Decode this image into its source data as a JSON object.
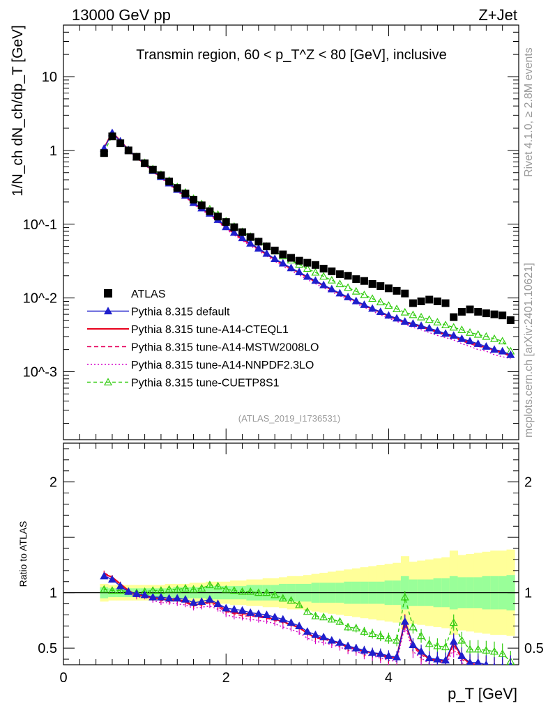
{
  "header": {
    "energy_label": "13000 GeV pp",
    "process_label": "Z+Jet"
  },
  "side": {
    "rivet_label": "Rivet 4.1.0, ≥ 2.8M events",
    "mcplots_label": "mcplots.cern.ch [arXiv:2401.10621]"
  },
  "colors": {
    "atlas": "#000000",
    "default": "#1f1fcc",
    "cteql1": "#e8001c",
    "mstw": "#e6005c",
    "nnpdf": "#d400c8",
    "cuetp8s1": "#33cc11",
    "band_inner": "#99ff99",
    "band_outer": "#ffff99"
  },
  "chart_data": {
    "type": "scatter",
    "main": {
      "title": "Transmin region, 60 < p_T^Z < 80 [GeV], inclusive",
      "ylabel": "1/N_ch dN_ch/dp_T [GeV]",
      "yscale": "log",
      "ylim": [
        0.00012,
        50
      ],
      "yticks": [
        "10",
        "1",
        "10^-1",
        "10^-2",
        "10^-3"
      ],
      "analysis_tag": "(ATLAS_2019_I1736531)"
    },
    "ratio": {
      "ylabel": "Ratio to ATLAS",
      "ylim": [
        0.35,
        2.35
      ],
      "yticks": [
        "2",
        "1",
        "0.5"
      ]
    },
    "xlabel": "p_T [GeV]",
    "xlim": [
      0,
      5.6
    ],
    "xticks": [
      "0",
      "2",
      "4"
    ],
    "x": [
      0.5,
      0.6,
      0.7,
      0.8,
      0.9,
      1.0,
      1.1,
      1.2,
      1.3,
      1.4,
      1.5,
      1.6,
      1.7,
      1.8,
      1.9,
      2.0,
      2.1,
      2.2,
      2.3,
      2.4,
      2.5,
      2.6,
      2.7,
      2.8,
      2.9,
      3.0,
      3.1,
      3.2,
      3.3,
      3.4,
      3.5,
      3.6,
      3.7,
      3.8,
      3.9,
      4.0,
      4.1,
      4.2,
      4.3,
      4.4,
      4.5,
      4.6,
      4.7,
      4.8,
      4.9,
      5.0,
      5.1,
      5.2,
      5.3,
      5.4,
      5.5
    ],
    "series": [
      {
        "name": "ATLAS",
        "key": "atlas",
        "style": "square",
        "values": [
          0.92,
          1.55,
          1.25,
          1.0,
          0.82,
          0.67,
          0.55,
          0.46,
          0.38,
          0.31,
          0.26,
          0.215,
          0.18,
          0.15,
          0.127,
          0.107,
          0.091,
          0.078,
          0.067,
          0.058,
          0.05,
          0.044,
          0.039,
          0.035,
          0.032,
          0.03,
          0.028,
          0.025,
          0.023,
          0.021,
          0.02,
          0.018,
          0.017,
          0.0155,
          0.0145,
          0.0135,
          0.0125,
          0.0115,
          0.0085,
          0.009,
          0.0095,
          0.009,
          0.0085,
          0.0055,
          0.0065,
          0.007,
          0.0065,
          0.0062,
          0.006,
          0.0058,
          0.005
        ]
      },
      {
        "name": "Pythia 8.315 default",
        "key": "default",
        "style": "line-triangle",
        "values": [
          1.06,
          1.73,
          1.33,
          1.01,
          0.81,
          0.66,
          0.53,
          0.44,
          0.36,
          0.295,
          0.245,
          0.195,
          0.165,
          0.14,
          0.115,
          0.092,
          0.077,
          0.065,
          0.055,
          0.047,
          0.04,
          0.034,
          0.0295,
          0.0255,
          0.0225,
          0.0195,
          0.0172,
          0.015,
          0.0132,
          0.0116,
          0.0103,
          0.0091,
          0.0081,
          0.0072,
          0.0065,
          0.0058,
          0.0053,
          0.0048,
          0.0045,
          0.0042,
          0.0039,
          0.0036,
          0.0033,
          0.0031,
          0.0028,
          0.0026,
          0.0024,
          0.0022,
          0.002,
          0.0019,
          0.0017
        ]
      },
      {
        "name": "Pythia 8.315 tune-A14-CTEQL1",
        "key": "cteql1",
        "style": "solid",
        "values": [
          1.08,
          1.76,
          1.35,
          1.02,
          0.8,
          0.655,
          0.525,
          0.435,
          0.355,
          0.29,
          0.24,
          0.192,
          0.162,
          0.138,
          0.113,
          0.09,
          0.075,
          0.063,
          0.054,
          0.046,
          0.039,
          0.0333,
          0.0288,
          0.025,
          0.022,
          0.019,
          0.0168,
          0.0147,
          0.013,
          0.0114,
          0.0101,
          0.009,
          0.008,
          0.0071,
          0.0064,
          0.0057,
          0.0052,
          0.0047,
          0.0044,
          0.0041,
          0.0038,
          0.0035,
          0.0032,
          0.003,
          0.0027,
          0.0025,
          0.0023,
          0.0021,
          0.002,
          0.0018,
          0.0017
        ]
      },
      {
        "name": "Pythia 8.315 tune-A14-MSTW2008LO",
        "key": "mstw",
        "style": "dashed",
        "values": [
          1.09,
          1.77,
          1.34,
          1.01,
          0.8,
          0.65,
          0.52,
          0.43,
          0.35,
          0.287,
          0.237,
          0.19,
          0.16,
          0.136,
          0.111,
          0.089,
          0.074,
          0.062,
          0.053,
          0.0455,
          0.0385,
          0.033,
          0.0285,
          0.0247,
          0.0217,
          0.0188,
          0.0165,
          0.0145,
          0.0128,
          0.0113,
          0.01,
          0.0089,
          0.0079,
          0.007,
          0.0063,
          0.0056,
          0.0051,
          0.0046,
          0.0043,
          0.004,
          0.0037,
          0.0034,
          0.0031,
          0.0029,
          0.0026,
          0.0024,
          0.0022,
          0.0021,
          0.0019,
          0.0018,
          0.0016
        ]
      },
      {
        "name": "Pythia 8.315 tune-A14-NNPDF2.3LO",
        "key": "nnpdf",
        "style": "dotted",
        "values": [
          1.07,
          1.74,
          1.32,
          1.0,
          0.79,
          0.64,
          0.51,
          0.42,
          0.345,
          0.28,
          0.232,
          0.185,
          0.156,
          0.132,
          0.108,
          0.086,
          0.071,
          0.06,
          0.051,
          0.0435,
          0.037,
          0.0315,
          0.027,
          0.0235,
          0.0205,
          0.0178,
          0.0156,
          0.0137,
          0.0121,
          0.0107,
          0.0095,
          0.0084,
          0.0075,
          0.0066,
          0.0059,
          0.0053,
          0.0048,
          0.0044,
          0.004,
          0.0037,
          0.0034,
          0.0031,
          0.0029,
          0.0027,
          0.0024,
          0.0022,
          0.002,
          0.0019,
          0.0017,
          0.0016,
          0.0015
        ]
      },
      {
        "name": "Pythia 8.315 tune-CUETP8S1",
        "key": "cuetp8s1",
        "style": "dashed-triangle-open",
        "values": [
          0.95,
          1.58,
          1.27,
          1.01,
          0.82,
          0.68,
          0.56,
          0.47,
          0.39,
          0.32,
          0.27,
          0.222,
          0.188,
          0.16,
          0.135,
          0.11,
          0.093,
          0.079,
          0.068,
          0.058,
          0.05,
          0.043,
          0.037,
          0.0325,
          0.0285,
          0.025,
          0.0222,
          0.0196,
          0.0174,
          0.0155,
          0.0138,
          0.0123,
          0.011,
          0.0098,
          0.0088,
          0.0079,
          0.0071,
          0.0064,
          0.0059,
          0.0055,
          0.0051,
          0.0047,
          0.0043,
          0.004,
          0.0037,
          0.0034,
          0.0032,
          0.003,
          0.0028,
          0.0026,
          0.0019
        ]
      }
    ],
    "ratios": {
      "default": [
        1.15,
        1.12,
        1.06,
        1.01,
        0.99,
        0.98,
        0.96,
        0.96,
        0.95,
        0.95,
        0.94,
        0.91,
        0.92,
        0.94,
        0.9,
        0.86,
        0.85,
        0.84,
        0.82,
        0.81,
        0.8,
        0.78,
        0.76,
        0.73,
        0.7,
        0.65,
        0.62,
        0.6,
        0.57,
        0.55,
        0.52,
        0.5,
        0.48,
        0.46,
        0.45,
        0.43,
        0.42,
        0.74,
        0.53,
        0.47,
        0.41,
        0.4,
        0.39,
        0.56,
        0.43,
        0.37,
        0.37,
        0.35,
        0.33,
        0.33,
        0.34
      ],
      "cteql1": [
        1.17,
        1.14,
        1.08,
        1.02,
        0.98,
        0.98,
        0.95,
        0.95,
        0.93,
        0.94,
        0.92,
        0.89,
        0.9,
        0.92,
        0.89,
        0.84,
        0.82,
        0.81,
        0.81,
        0.79,
        0.78,
        0.76,
        0.74,
        0.71,
        0.69,
        0.63,
        0.6,
        0.59,
        0.57,
        0.54,
        0.51,
        0.5,
        0.47,
        0.46,
        0.44,
        0.42,
        0.42,
        0.75,
        0.52,
        0.46,
        0.4,
        0.39,
        0.38,
        0.55,
        0.42,
        0.36,
        0.35,
        0.34,
        0.33,
        0.31,
        0.34
      ],
      "mstw": [
        1.18,
        1.14,
        1.07,
        1.01,
        0.98,
        0.97,
        0.95,
        0.93,
        0.92,
        0.93,
        0.91,
        0.88,
        0.89,
        0.91,
        0.87,
        0.83,
        0.81,
        0.79,
        0.79,
        0.78,
        0.77,
        0.75,
        0.73,
        0.71,
        0.68,
        0.63,
        0.59,
        0.58,
        0.56,
        0.54,
        0.5,
        0.49,
        0.46,
        0.45,
        0.43,
        0.41,
        0.41,
        0.72,
        0.51,
        0.44,
        0.39,
        0.38,
        0.36,
        0.53,
        0.4,
        0.34,
        0.34,
        0.34,
        0.32,
        0.31,
        0.32
      ],
      "nnpdf": [
        1.16,
        1.12,
        1.06,
        1.0,
        0.96,
        0.96,
        0.93,
        0.91,
        0.91,
        0.9,
        0.89,
        0.86,
        0.87,
        0.88,
        0.85,
        0.8,
        0.78,
        0.77,
        0.76,
        0.75,
        0.74,
        0.72,
        0.69,
        0.67,
        0.64,
        0.59,
        0.56,
        0.55,
        0.53,
        0.51,
        0.48,
        0.47,
        0.44,
        0.43,
        0.41,
        0.39,
        0.38,
        0.7,
        0.47,
        0.41,
        0.36,
        0.34,
        0.34,
        0.49,
        0.37,
        0.31,
        0.31,
        0.31,
        0.28,
        0.28,
        0.3
      ],
      "cuetp8s1": [
        1.03,
        1.02,
        1.02,
        1.01,
        1.0,
        1.01,
        1.02,
        1.02,
        1.03,
        1.03,
        1.04,
        1.03,
        1.04,
        1.07,
        1.06,
        1.03,
        1.02,
        1.01,
        1.01,
        1.0,
        1.0,
        0.98,
        0.95,
        0.93,
        0.89,
        0.83,
        0.79,
        0.78,
        0.76,
        0.74,
        0.69,
        0.68,
        0.65,
        0.63,
        0.61,
        0.59,
        0.57,
        0.96,
        0.69,
        0.61,
        0.54,
        0.52,
        0.51,
        0.73,
        0.57,
        0.49,
        0.49,
        0.48,
        0.47,
        0.45,
        0.38
      ]
    },
    "band": {
      "inner": [
        0.05,
        0.04,
        0.04,
        0.04,
        0.04,
        0.04,
        0.04,
        0.04,
        0.04,
        0.05,
        0.05,
        0.05,
        0.05,
        0.06,
        0.06,
        0.06,
        0.06,
        0.06,
        0.07,
        0.07,
        0.07,
        0.07,
        0.08,
        0.08,
        0.08,
        0.08,
        0.09,
        0.09,
        0.09,
        0.09,
        0.1,
        0.1,
        0.1,
        0.1,
        0.1,
        0.11,
        0.11,
        0.15,
        0.12,
        0.12,
        0.12,
        0.13,
        0.13,
        0.15,
        0.14,
        0.14,
        0.14,
        0.15,
        0.15,
        0.15,
        0.16
      ],
      "outer": [
        0.08,
        0.07,
        0.07,
        0.07,
        0.07,
        0.07,
        0.07,
        0.07,
        0.08,
        0.08,
        0.08,
        0.09,
        0.09,
        0.1,
        0.1,
        0.1,
        0.11,
        0.11,
        0.12,
        0.12,
        0.13,
        0.13,
        0.14,
        0.15,
        0.15,
        0.16,
        0.17,
        0.18,
        0.19,
        0.2,
        0.21,
        0.22,
        0.23,
        0.24,
        0.25,
        0.26,
        0.27,
        0.33,
        0.28,
        0.29,
        0.3,
        0.31,
        0.32,
        0.38,
        0.34,
        0.35,
        0.36,
        0.37,
        0.38,
        0.38,
        0.39
      ]
    }
  }
}
